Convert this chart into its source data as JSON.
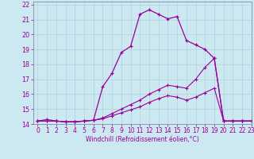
{
  "xlabel": "Windchill (Refroidissement éolien,°C)",
  "background_color": "#cce8f0",
  "grid_color": "#aaccdd",
  "line_color": "#990099",
  "xlim": [
    -0.5,
    23
  ],
  "ylim": [
    14,
    22.2
  ],
  "yticks": [
    14,
    15,
    16,
    17,
    18,
    19,
    20,
    21,
    22
  ],
  "xticks": [
    0,
    1,
    2,
    3,
    4,
    5,
    6,
    7,
    8,
    9,
    10,
    11,
    12,
    13,
    14,
    15,
    16,
    17,
    18,
    19,
    20,
    21,
    22,
    23
  ],
  "line1_x": [
    0,
    1,
    2,
    3,
    4,
    5,
    6,
    7,
    8,
    9,
    10,
    11,
    12,
    13,
    14,
    15,
    16,
    17,
    18,
    19,
    20,
    21,
    22,
    23
  ],
  "line1_y": [
    14.2,
    14.3,
    14.2,
    14.15,
    14.15,
    14.2,
    14.25,
    16.5,
    17.4,
    18.8,
    19.2,
    21.35,
    21.65,
    21.35,
    21.05,
    21.2,
    19.6,
    19.3,
    19.0,
    18.4,
    14.2,
    14.2,
    14.2,
    14.2
  ],
  "line2_x": [
    0,
    1,
    2,
    3,
    4,
    5,
    6,
    7,
    8,
    9,
    10,
    11,
    12,
    13,
    14,
    15,
    16,
    17,
    18,
    19,
    20,
    21,
    22,
    23
  ],
  "line2_y": [
    14.2,
    14.2,
    14.2,
    14.15,
    14.15,
    14.2,
    14.25,
    14.4,
    14.7,
    15.0,
    15.3,
    15.6,
    16.0,
    16.3,
    16.6,
    16.5,
    16.4,
    17.0,
    17.8,
    18.4,
    14.2,
    14.2,
    14.2,
    14.2
  ],
  "line3_x": [
    0,
    1,
    2,
    3,
    4,
    5,
    6,
    7,
    8,
    9,
    10,
    11,
    12,
    13,
    14,
    15,
    16,
    17,
    18,
    19,
    20,
    21,
    22,
    23
  ],
  "line3_y": [
    14.2,
    14.2,
    14.2,
    14.15,
    14.15,
    14.2,
    14.25,
    14.35,
    14.55,
    14.75,
    14.95,
    15.15,
    15.45,
    15.7,
    15.9,
    15.8,
    15.6,
    15.8,
    16.1,
    16.4,
    14.2,
    14.2,
    14.2,
    14.2
  ],
  "xlabel_fontsize": 5.5,
  "tick_fontsize": 5.5,
  "linewidth1": 0.9,
  "linewidth2": 0.8,
  "markersize": 3.0
}
